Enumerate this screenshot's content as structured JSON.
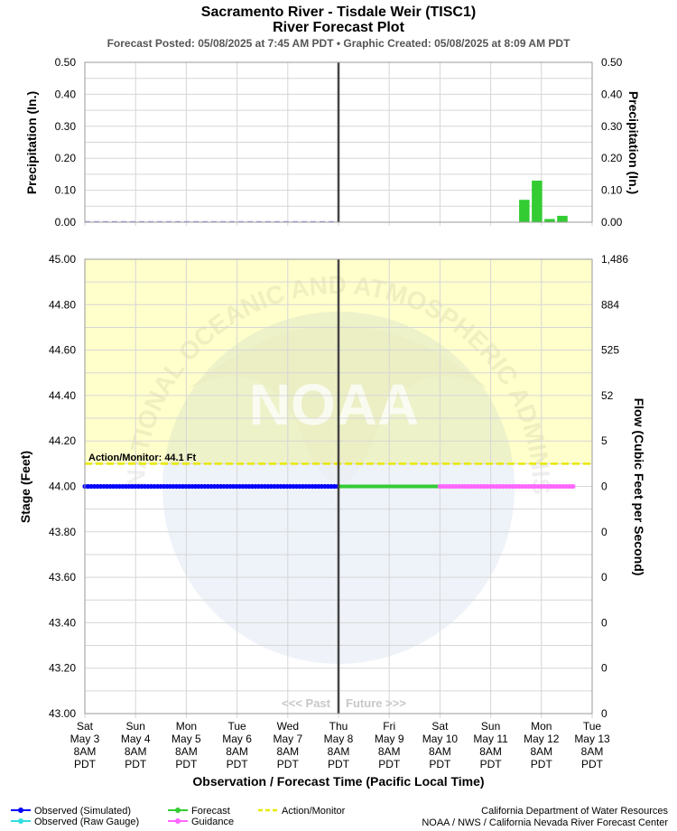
{
  "header": {
    "title_line1": "Sacramento River - Tisdale Weir (TISC1)",
    "title_line2": "River Forecast Plot",
    "subtitle": "Forecast Posted: 05/08/2025 at 7:45 AM PDT  •  Graphic Created: 05/08/2025 at 8:09 AM PDT"
  },
  "chart_data": [
    {
      "type": "bar",
      "panel": "precipitation",
      "ylabel": "Precipitation (In.)",
      "ylabel_right": "Precipitation (In.)",
      "ylim": [
        0,
        0.5
      ],
      "yticks": [
        "0.00",
        "0.10",
        "0.20",
        "0.30",
        "0.40",
        "0.50"
      ],
      "observed_dashed_to": "May 8 8AM",
      "bars": [
        {
          "time": "May 12 0AM",
          "value": 0.07
        },
        {
          "time": "May 12 6AM",
          "value": 0.13
        },
        {
          "time": "May 12 12PM",
          "value": 0.01
        },
        {
          "time": "May 12 6PM",
          "value": 0.02
        }
      ],
      "bar_color": "#33cc33"
    },
    {
      "type": "line",
      "panel": "stage",
      "ylabel": "Stage (Feet)",
      "ylabel_right": "Flow (Cubic Feet per Second)",
      "ylim": [
        43.0,
        45.0
      ],
      "yticks": [
        "43.00",
        "43.20",
        "43.40",
        "43.60",
        "43.80",
        "44.00",
        "44.20",
        "44.40",
        "44.60",
        "44.80",
        "45.00"
      ],
      "yticks_right": [
        "0",
        "0",
        "0",
        "0",
        "0",
        "0",
        "5",
        "52",
        "525",
        "884",
        "1,486"
      ],
      "action_monitor": {
        "value": 44.1,
        "label": "Action/Monitor: 44.1 Ft",
        "color": "#e8e800"
      },
      "shaded_above": 44.1,
      "shade_color": "#ffffcc",
      "now": "Thu May 8 8AM",
      "past_label": "<<< Past",
      "future_label": "Future >>>",
      "series": [
        {
          "name": "Observed (Simulated)",
          "color": "#0000ff",
          "from": "May 3 8AM",
          "to": "May 8 8AM",
          "value": 44.0
        },
        {
          "name": "Forecast",
          "color": "#33cc33",
          "from": "May 8 8AM",
          "to": "May 10 8AM",
          "value": 44.0
        },
        {
          "name": "Guidance",
          "color": "#ff66ff",
          "from": "May 10 8AM",
          "to": "May 13 0AM",
          "value": 44.0
        }
      ]
    }
  ],
  "x_axis": {
    "title": "Observation / Forecast Time (Pacific Local Time)",
    "ticks": [
      {
        "day": "Sat",
        "date": "May 3",
        "time": "8AM",
        "tz": "PDT"
      },
      {
        "day": "Sun",
        "date": "May 4",
        "time": "8AM",
        "tz": "PDT"
      },
      {
        "day": "Mon",
        "date": "May 5",
        "time": "8AM",
        "tz": "PDT"
      },
      {
        "day": "Tue",
        "date": "May 6",
        "time": "8AM",
        "tz": "PDT"
      },
      {
        "day": "Wed",
        "date": "May 7",
        "time": "8AM",
        "tz": "PDT"
      },
      {
        "day": "Thu",
        "date": "May 8",
        "time": "8AM",
        "tz": "PDT"
      },
      {
        "day": "Fri",
        "date": "May 9",
        "time": "8AM",
        "tz": "PDT"
      },
      {
        "day": "Sat",
        "date": "May 10",
        "time": "8AM",
        "tz": "PDT"
      },
      {
        "day": "Sun",
        "date": "May 11",
        "time": "8AM",
        "tz": "PDT"
      },
      {
        "day": "Mon",
        "date": "May 12",
        "time": "8AM",
        "tz": "PDT"
      },
      {
        "day": "Tue",
        "date": "May 13",
        "time": "8AM",
        "tz": "PDT"
      }
    ]
  },
  "legend": [
    {
      "label": "Observed (Simulated)",
      "color": "#0000ff",
      "style": "line-dot"
    },
    {
      "label": "Observed (Raw Gauge)",
      "color": "#33dddd",
      "style": "line-dot"
    },
    {
      "label": "Forecast",
      "color": "#33cc33",
      "style": "line-dot"
    },
    {
      "label": "Guidance",
      "color": "#ff66ff",
      "style": "line-dot"
    },
    {
      "label": "Action/Monitor",
      "color": "#e8e800",
      "style": "dash"
    }
  ],
  "credits": {
    "line1": "California Department of Water Resources",
    "line2": "NOAA / NWS / California Nevada River Forecast Center"
  },
  "watermark": {
    "text": "NOAA",
    "ring_text": "NATIONAL OCEANIC AND ATMOSPHERIC ADMINISTRATION"
  }
}
